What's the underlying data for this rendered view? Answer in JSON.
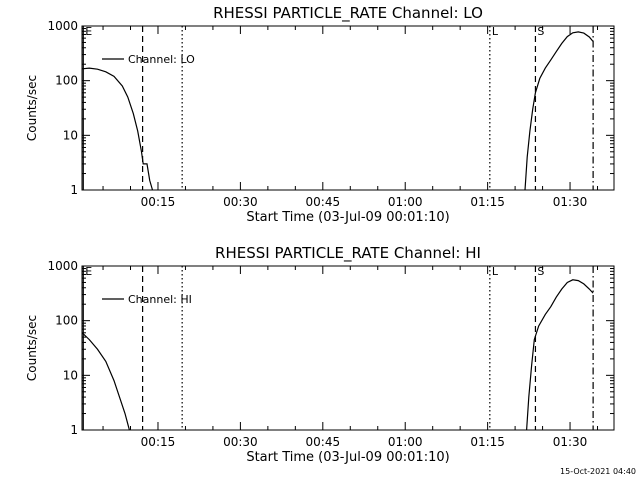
{
  "footer_stamp": "15-Oct-2021 04:40",
  "chart_data": [
    {
      "type": "line",
      "title": "RHESSI PARTICLE_RATE Channel: LO",
      "xlabel": "Start Time (03-Jul-09 00:01:10)",
      "ylabel": "Counts/sec",
      "yscale": "log",
      "ylim": [
        1,
        1000
      ],
      "xlim_minutes": [
        1.17,
        98
      ],
      "x_ticks": [
        {
          "minute": 15,
          "label": "00:15"
        },
        {
          "minute": 30,
          "label": "00:30"
        },
        {
          "minute": 45,
          "label": "00:45"
        },
        {
          "minute": 60,
          "label": "01:00"
        },
        {
          "minute": 75,
          "label": "01:15"
        },
        {
          "minute": 90,
          "label": "01:30"
        }
      ],
      "y_ticks": [
        {
          "value": 1,
          "label": "1"
        },
        {
          "value": 10,
          "label": "10"
        },
        {
          "value": 100,
          "label": "100"
        },
        {
          "value": 1000,
          "label": "1000"
        }
      ],
      "legend": "Channel: LO",
      "markers": [
        {
          "minute": 1.4,
          "style": "solid",
          "label": "E"
        },
        {
          "minute": 12.2,
          "style": "dashed",
          "label": ""
        },
        {
          "minute": 19.4,
          "style": "dotted",
          "label": ""
        },
        {
          "minute": 75.4,
          "style": "dotted",
          "label": "L"
        },
        {
          "minute": 83.7,
          "style": "dashed",
          "label": "S"
        },
        {
          "minute": 94.2,
          "style": "dashdot",
          "label": ""
        }
      ],
      "series": [
        {
          "segments": [
            [
              [
                1.2,
                165
              ],
              [
                2.5,
                170
              ],
              [
                4,
                162
              ],
              [
                5.5,
                145
              ],
              [
                7,
                120
              ],
              [
                8.5,
                80
              ],
              [
                9.5,
                50
              ],
              [
                10.5,
                25
              ],
              [
                11.3,
                12
              ],
              [
                12,
                5
              ],
              [
                12.3,
                3
              ],
              [
                13,
                3
              ],
              [
                13.5,
                1.5
              ],
              [
                14,
                1
              ]
            ],
            [
              [
                81.8,
                1
              ],
              [
                82.2,
                4
              ],
              [
                82.7,
                12
              ],
              [
                83.2,
                30
              ],
              [
                83.7,
                60
              ],
              [
                84.5,
                110
              ],
              [
                85.5,
                170
              ],
              [
                86.5,
                240
              ],
              [
                87.5,
                340
              ],
              [
                88.5,
                480
              ],
              [
                89.5,
                640
              ],
              [
                90.5,
                750
              ],
              [
                91.5,
                780
              ],
              [
                92.5,
                740
              ],
              [
                93.5,
                630
              ],
              [
                94.2,
                520
              ]
            ]
          ]
        }
      ]
    },
    {
      "type": "line",
      "title": "RHESSI PARTICLE_RATE Channel: HI",
      "xlabel": "Start Time (03-Jul-09 00:01:10)",
      "ylabel": "Counts/sec",
      "yscale": "log",
      "ylim": [
        1,
        1000
      ],
      "xlim_minutes": [
        1.17,
        98
      ],
      "x_ticks": [
        {
          "minute": 15,
          "label": "00:15"
        },
        {
          "minute": 30,
          "label": "00:30"
        },
        {
          "minute": 45,
          "label": "00:45"
        },
        {
          "minute": 60,
          "label": "01:00"
        },
        {
          "minute": 75,
          "label": "01:15"
        },
        {
          "minute": 90,
          "label": "01:30"
        }
      ],
      "y_ticks": [
        {
          "value": 1,
          "label": "1"
        },
        {
          "value": 10,
          "label": "10"
        },
        {
          "value": 100,
          "label": "100"
        },
        {
          "value": 1000,
          "label": "1000"
        }
      ],
      "legend": "Channel: HI",
      "markers": [
        {
          "minute": 1.4,
          "style": "solid",
          "label": "E"
        },
        {
          "minute": 12.2,
          "style": "dashed",
          "label": ""
        },
        {
          "minute": 19.4,
          "style": "dotted",
          "label": ""
        },
        {
          "minute": 75.4,
          "style": "dotted",
          "label": "L"
        },
        {
          "minute": 83.7,
          "style": "dashed",
          "label": "S"
        },
        {
          "minute": 94.2,
          "style": "dashdot",
          "label": ""
        }
      ],
      "series": [
        {
          "segments": [
            [
              [
                1.2,
                60
              ],
              [
                2.5,
                45
              ],
              [
                4,
                30
              ],
              [
                5.5,
                18
              ],
              [
                7,
                8
              ],
              [
                8,
                4
              ],
              [
                9,
                2
              ],
              [
                9.8,
                1
              ]
            ],
            [
              [
                82.1,
                1
              ],
              [
                82.5,
                4
              ],
              [
                83,
                15
              ],
              [
                83.5,
                45
              ],
              [
                84.3,
                80
              ],
              [
                85.5,
                130
              ],
              [
                86.5,
                180
              ],
              [
                87.5,
                270
              ],
              [
                88.5,
                380
              ],
              [
                89.5,
                500
              ],
              [
                90.5,
                560
              ],
              [
                91.5,
                540
              ],
              [
                92.5,
                470
              ],
              [
                93.5,
                380
              ],
              [
                94.2,
                320
              ]
            ]
          ]
        }
      ]
    }
  ]
}
